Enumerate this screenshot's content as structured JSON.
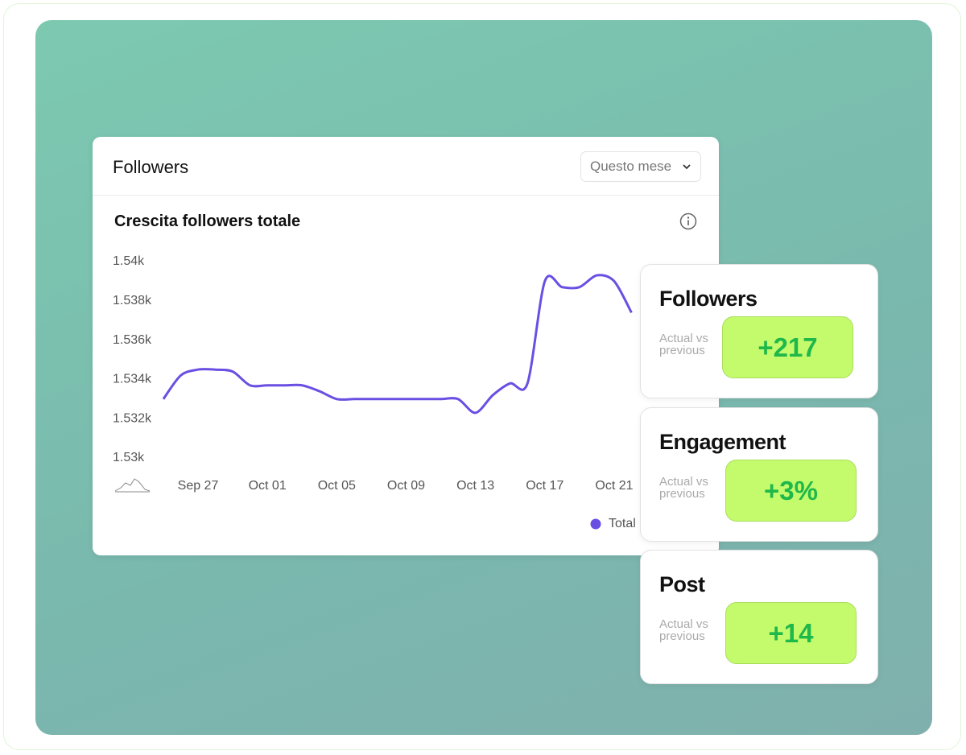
{
  "header": {
    "title": "Followers",
    "dropdown": "Questo mese"
  },
  "chart_data": {
    "type": "line",
    "title": "Crescita followers totale",
    "categories": [
      null,
      null,
      "Sep 27",
      null,
      null,
      null,
      "Oct 01",
      null,
      null,
      null,
      "Oct 05",
      null,
      null,
      null,
      "Oct 09",
      null,
      null,
      null,
      "Oct 13",
      null,
      null,
      null,
      "Oct 17",
      null,
      null,
      null,
      "Oct 21",
      null
    ],
    "series": [
      {
        "name": "Total",
        "color": "#6a4fe3",
        "values": [
          1533,
          1534.2,
          1534.5,
          1534.5,
          1534.4,
          1533.7,
          1533.7,
          1533.7,
          1533.7,
          1533.4,
          1533,
          1533,
          1533,
          1533,
          1533,
          1533,
          1533,
          1533,
          1532.3,
          1533.2,
          1533.8,
          1533.8,
          1539,
          1538.7,
          1538.7,
          1539.3,
          1539,
          1537.4
        ]
      }
    ],
    "ylim": [
      1530,
      1540
    ],
    "yticks": [
      {
        "value": 1530,
        "label": "1.53k"
      },
      {
        "value": 1532,
        "label": "1.532k"
      },
      {
        "value": 1534,
        "label": "1.534k"
      },
      {
        "value": 1536,
        "label": "1.536k"
      },
      {
        "value": 1538,
        "label": "1.538k"
      },
      {
        "value": 1540,
        "label": "1.54k"
      }
    ],
    "legend": "bottom-right"
  },
  "stats": [
    {
      "title": "Followers",
      "caption": "Actual vs previous",
      "value": "+217"
    },
    {
      "title": "Engagement",
      "caption": "Actual vs previous",
      "value": "+3%"
    },
    {
      "title": "Post",
      "caption": "Actual vs previous",
      "value": "+14"
    }
  ]
}
